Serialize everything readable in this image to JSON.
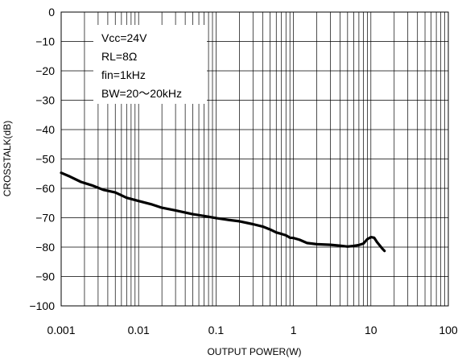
{
  "chart_data": {
    "type": "line",
    "title": "",
    "xlabel": "OUTPUT POWER(W)",
    "ylabel": "CROSSTALK(dB)",
    "xscale": "log",
    "xlim": [
      0.001,
      100
    ],
    "ylim": [
      -100,
      0
    ],
    "x_tick_labels": [
      "0.001",
      "0.01",
      "0.1",
      "1",
      "10",
      "100"
    ],
    "y_tick_labels": [
      "0",
      "−10",
      "−20",
      "−30",
      "−40",
      "−50",
      "−60",
      "−70",
      "−80",
      "−90",
      "−100"
    ],
    "grid": "on",
    "legend": "none",
    "conditions": [
      "Vcc=24V",
      "RL=8Ω",
      "fin=1kHz",
      "BW=20～20kHz"
    ],
    "series": [
      {
        "color": "#000000",
        "x": [
          0.001,
          0.0013,
          0.0018,
          0.0025,
          0.0035,
          0.005,
          0.007,
          0.01,
          0.015,
          0.02,
          0.03,
          0.05,
          0.07,
          0.1,
          0.15,
          0.2,
          0.3,
          0.4,
          0.5,
          0.6,
          0.7,
          0.8,
          0.9,
          1.0,
          1.2,
          1.5,
          2.0,
          3.0,
          4.0,
          5.0,
          6.0,
          7.0,
          8.0,
          9.0,
          10.0,
          11.0,
          12.0,
          14.0,
          15.0
        ],
        "y": [
          -54.7,
          -56.0,
          -57.8,
          -59.0,
          -60.5,
          -61.4,
          -63.2,
          -64.3,
          -65.5,
          -66.6,
          -67.5,
          -68.8,
          -69.4,
          -70.1,
          -70.8,
          -71.2,
          -72.2,
          -73.0,
          -74.0,
          -75.0,
          -75.5,
          -76.0,
          -76.8,
          -76.9,
          -77.5,
          -78.6,
          -79.0,
          -79.2,
          -79.5,
          -79.8,
          -79.6,
          -79.3,
          -78.8,
          -77.3,
          -76.6,
          -76.8,
          -78.3,
          -80.5,
          -81.3
        ]
      }
    ]
  }
}
